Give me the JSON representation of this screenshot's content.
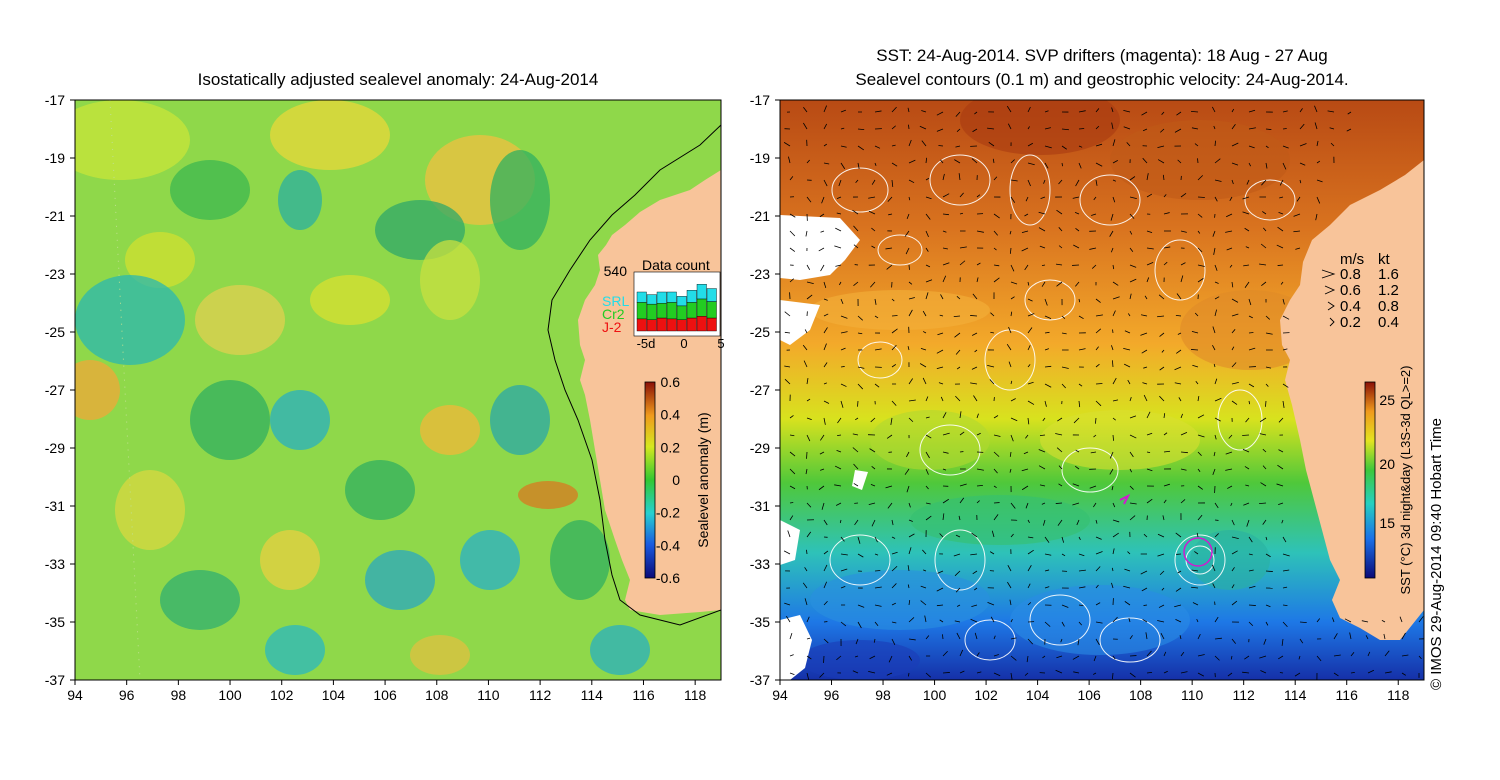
{
  "left_panel": {
    "title": "Isostatically adjusted sealevel anomaly: 24-Aug-2014",
    "colorbar": {
      "label": "Sealevel anomaly (m)",
      "ticks": [
        "0.6",
        "0.4",
        "0.2",
        "0",
        "-0.2",
        "-0.4",
        "-0.6"
      ]
    },
    "inset": {
      "title": "Data count",
      "max_count": "540",
      "legend": [
        {
          "name": "SRL",
          "color": "#22dde8"
        },
        {
          "name": "Cr2",
          "color": "#22cc22"
        },
        {
          "name": "J-2",
          "color": "#ee1111"
        }
      ],
      "x_ticks": [
        "-5d",
        "0",
        "5"
      ],
      "bars": [
        {
          "srl": 120,
          "cr2": 190,
          "j2": 140
        },
        {
          "srl": 110,
          "cr2": 180,
          "j2": 130
        },
        {
          "srl": 130,
          "cr2": 170,
          "j2": 150
        },
        {
          "srl": 120,
          "cr2": 190,
          "j2": 140
        },
        {
          "srl": 110,
          "cr2": 160,
          "j2": 130
        },
        {
          "srl": 140,
          "cr2": 180,
          "j2": 150
        },
        {
          "srl": 170,
          "cr2": 200,
          "j2": 170
        },
        {
          "srl": 150,
          "cr2": 190,
          "j2": 150
        }
      ]
    }
  },
  "right_panel": {
    "title_line1": "SST: 24-Aug-2014. SVP drifters (magenta): 18 Aug - 27 Aug",
    "title_line2": "Sealevel contours (0.1 m) and geostrophic velocity: 24-Aug-2014.",
    "colorbar": {
      "label": "SST (°C) 3d night&day (L3S-3d QL>=2)",
      "ticks": [
        "25",
        "20",
        "15"
      ]
    },
    "velocity_key": {
      "header_ms": "m/s",
      "header_kt": "kt",
      "rows": [
        {
          "ms": "0.8",
          "kt": "1.6"
        },
        {
          "ms": "0.6",
          "kt": "1.2"
        },
        {
          "ms": "0.4",
          "kt": "0.8"
        },
        {
          "ms": "0.2",
          "kt": "0.4"
        }
      ]
    }
  },
  "axes": {
    "lat_labels": [
      "-17",
      "-19",
      "-21",
      "-23",
      "-25",
      "-27",
      "-29",
      "-31",
      "-33",
      "-35",
      "-37"
    ],
    "lon_labels": [
      "94",
      "96",
      "98",
      "100",
      "102",
      "104",
      "106",
      "108",
      "110",
      "112",
      "114",
      "116",
      "118"
    ]
  },
  "credit": "© IMOS 29-Aug-2014 09:40 Hobart Time",
  "colors": {
    "land": "#f8c49a",
    "sla_background": "#8fd84a",
    "sst_warm": "#d2691e",
    "sst_cold": "#1e6ee8"
  }
}
